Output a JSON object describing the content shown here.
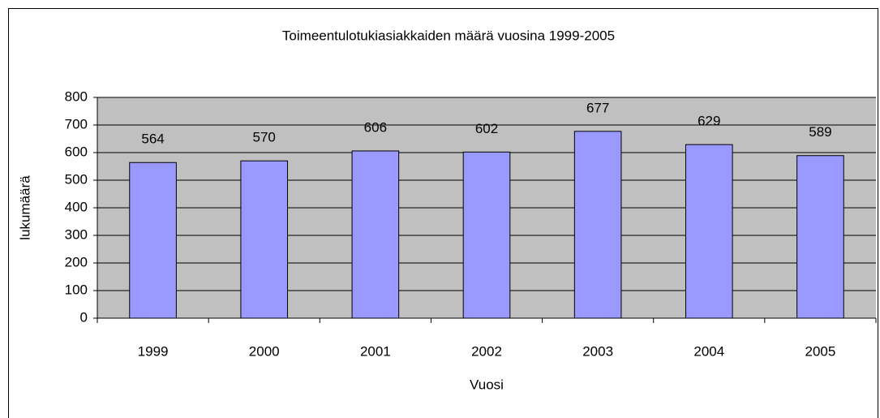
{
  "chart_data": {
    "type": "bar",
    "title": "Toimeentulotukiasiakkaiden määrä vuosina 1999-2005",
    "x_label": "Vuosi",
    "y_label": "lukumäärä",
    "categories": [
      "1999",
      "2000",
      "2001",
      "2002",
      "2003",
      "2004",
      "2005"
    ],
    "values": [
      564,
      570,
      606,
      602,
      677,
      629,
      589
    ],
    "color": "#9999ff",
    "ylim": [
      0,
      800
    ],
    "yticks": [
      0,
      100,
      200,
      300,
      400,
      500,
      600,
      700,
      800
    ],
    "grid": true
  }
}
